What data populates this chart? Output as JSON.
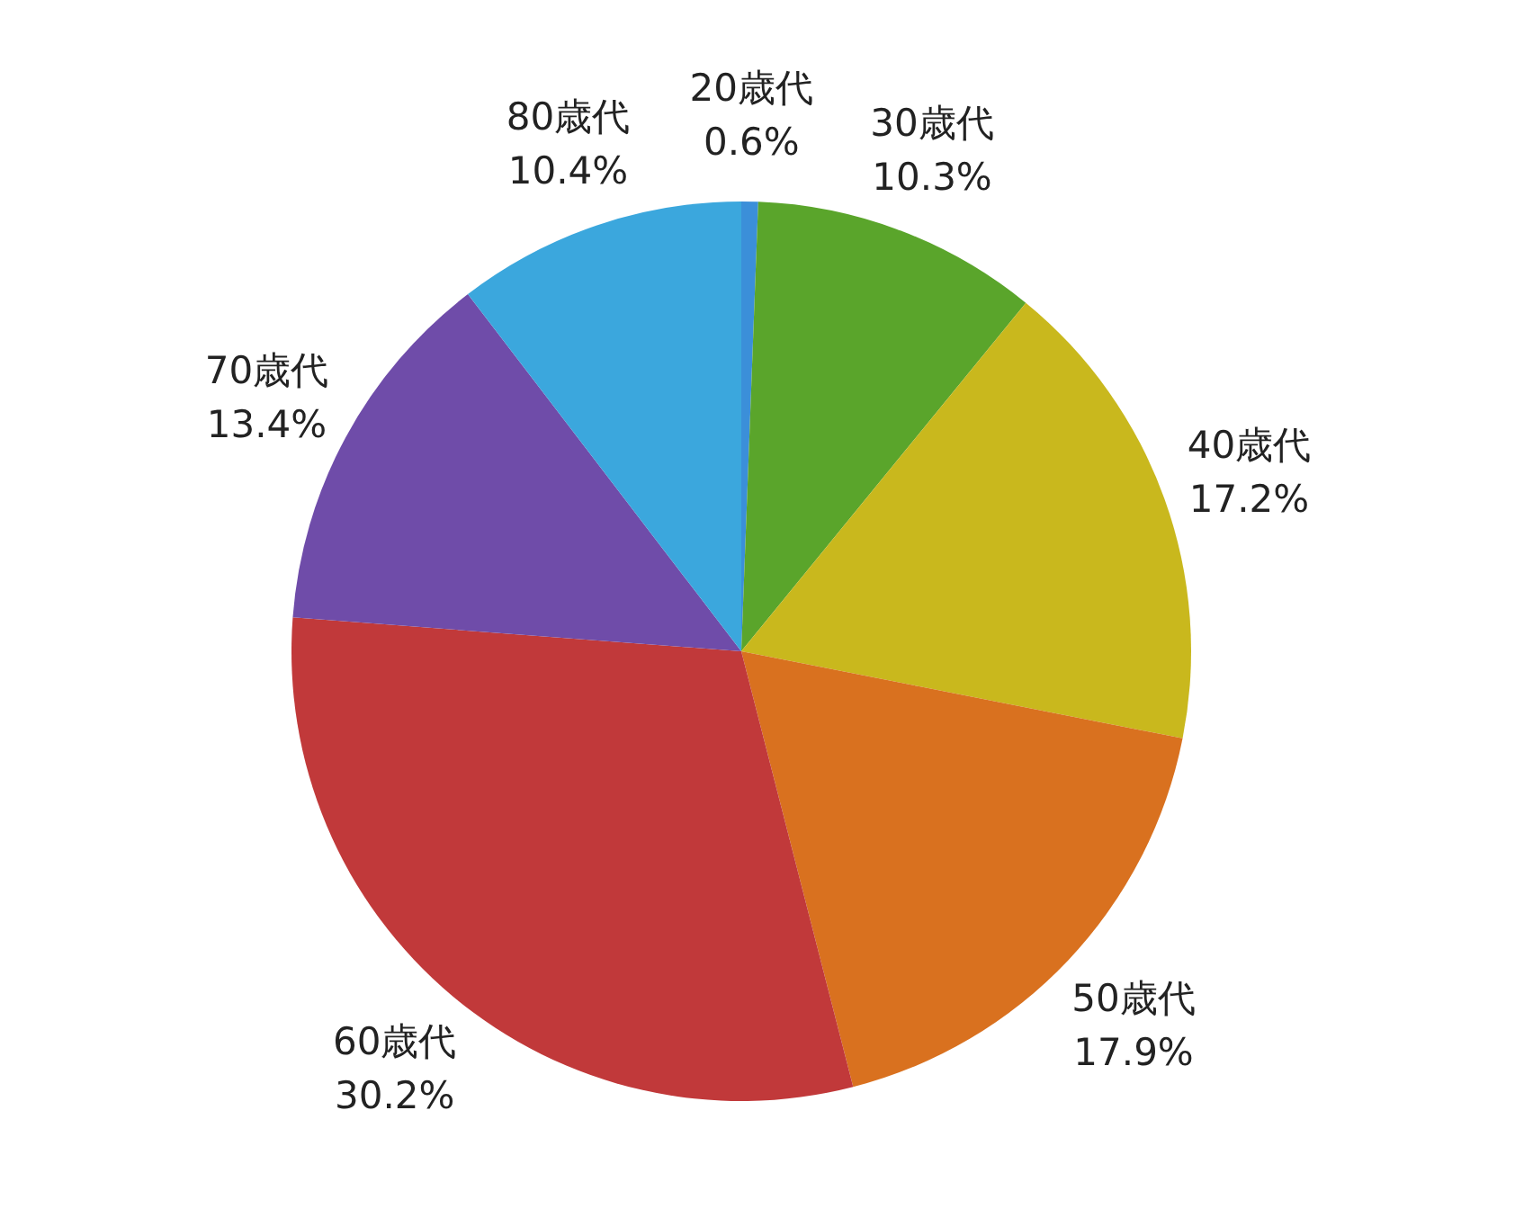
{
  "chart_data": {
    "type": "pie",
    "categories": [
      "20歳代",
      "30歳代",
      "40歳代",
      "50歳代",
      "60歳代",
      "70歳代",
      "80歳代"
    ],
    "values": [
      0.6,
      10.3,
      17.2,
      17.9,
      30.2,
      13.4,
      10.4
    ],
    "value_labels": [
      "0.6%",
      "10.3%",
      "17.2%",
      "17.9%",
      "30.2%",
      "13.4%",
      "10.4%"
    ],
    "colors": [
      "#3b8fd9",
      "#5aa52b",
      "#c9b81d",
      "#d9711f",
      "#c1393a",
      "#6f4ca9",
      "#3ba7dd"
    ]
  }
}
